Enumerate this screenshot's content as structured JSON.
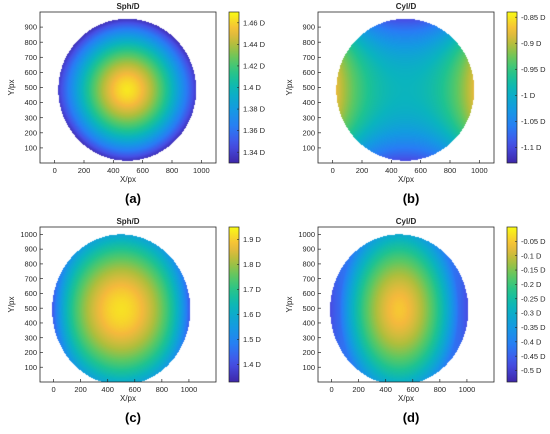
{
  "figure": {
    "panels": [
      "(a)",
      "(b)",
      "(c)",
      "(d)"
    ]
  },
  "chart_data": [
    {
      "type": "heatmap",
      "panel": "(a)",
      "title": "Sph/D",
      "xlabel": "X/px",
      "ylabel": "Y/px",
      "xlim": [
        -100,
        1100
      ],
      "ylim": [
        0,
        1000
      ],
      "xticks": [
        0,
        200,
        400,
        600,
        800,
        1000
      ],
      "yticks": [
        100,
        200,
        300,
        400,
        500,
        600,
        700,
        800,
        900
      ],
      "xtick_labels": [
        "0",
        "200",
        "400",
        "600",
        "800",
        "1000"
      ],
      "ytick_labels": [
        "100",
        "200",
        "300",
        "400",
        "500",
        "600",
        "700",
        "800",
        "900"
      ],
      "colorbar": {
        "min": 1.33,
        "max": 1.47,
        "ticks": [
          1.34,
          1.36,
          1.38,
          1.4,
          1.42,
          1.44,
          1.46
        ],
        "tick_labels": [
          "1.34 D",
          "1.36 D",
          "1.38 D",
          "1.4 D",
          "1.42 D",
          "1.44 D",
          "1.46 D"
        ]
      },
      "map": {
        "shape": "disk",
        "cx": 495,
        "cy": 485,
        "r": 470,
        "pattern": "radial",
        "center_value": 1.465,
        "edge_value": 1.335,
        "ecc": 0.98,
        "power": 1.6,
        "edge_x_boost": 0.06
      }
    },
    {
      "type": "heatmap",
      "panel": "(b)",
      "title": "Cyl/D",
      "xlabel": "X/px",
      "ylabel": "Y/px",
      "xlim": [
        -100,
        1100
      ],
      "ylim": [
        0,
        1000
      ],
      "xticks": [
        0,
        200,
        400,
        600,
        800,
        1000
      ],
      "yticks": [
        100,
        200,
        300,
        400,
        500,
        600,
        700,
        800,
        900
      ],
      "xtick_labels": [
        "0",
        "200",
        "400",
        "600",
        "800",
        "1000"
      ],
      "ytick_labels": [
        "100",
        "200",
        "300",
        "400",
        "500",
        "600",
        "700",
        "800",
        "900"
      ],
      "colorbar": {
        "min": -1.13,
        "max": -0.84,
        "ticks": [
          -1.1,
          -1.05,
          -1,
          -0.95,
          -0.9,
          -0.85
        ],
        "tick_labels": [
          "-1.1 D",
          "-1.05 D",
          "-1 D",
          "-0.95 D",
          "-0.9 D",
          "-0.85 D"
        ]
      },
      "map": {
        "shape": "disk",
        "cx": 495,
        "cy": 485,
        "r": 470,
        "pattern": "saddle",
        "center_value": -0.99,
        "amp_x": 0.11,
        "amp_y": 0.11,
        "power": 2.2
      }
    },
    {
      "type": "heatmap",
      "panel": "(c)",
      "title": "Sph/D",
      "xlabel": "X/px",
      "ylabel": "Y/px",
      "xlim": [
        -100,
        1200
      ],
      "ylim": [
        0,
        1050
      ],
      "xticks": [
        0,
        200,
        400,
        600,
        800,
        1000
      ],
      "yticks": [
        100,
        200,
        300,
        400,
        500,
        600,
        700,
        800,
        900,
        1000
      ],
      "xtick_labels": [
        "0",
        "200",
        "400",
        "600",
        "800",
        "1000"
      ],
      "ytick_labels": [
        "100",
        "200",
        "300",
        "400",
        "500",
        "600",
        "700",
        "800",
        "900",
        "1000"
      ],
      "colorbar": {
        "min": 1.33,
        "max": 1.95,
        "ticks": [
          1.4,
          1.5,
          1.6,
          1.7,
          1.8,
          1.9
        ],
        "tick_labels": [
          "1.4 D",
          "1.5 D",
          "1.6 D",
          "1.7 D",
          "1.8 D",
          "1.9 D"
        ]
      },
      "map": {
        "shape": "disk",
        "cx": 500,
        "cy": 490,
        "r": 510,
        "pattern": "radial",
        "center_value": 1.92,
        "edge_value": 1.58,
        "ecc": 0.93,
        "power": 1.8,
        "edge_x_boost": -0.2
      }
    },
    {
      "type": "heatmap",
      "panel": "(d)",
      "title": "Cyl/D",
      "xlabel": "X/px",
      "ylabel": "Y/px",
      "xlim": [
        -100,
        1200
      ],
      "ylim": [
        0,
        1050
      ],
      "xticks": [
        0,
        200,
        400,
        600,
        800,
        1000
      ],
      "yticks": [
        100,
        200,
        300,
        400,
        500,
        600,
        700,
        800,
        900,
        1000
      ],
      "xtick_labels": [
        "0",
        "200",
        "400",
        "600",
        "800",
        "1000"
      ],
      "ytick_labels": [
        "100",
        "200",
        "300",
        "400",
        "500",
        "600",
        "700",
        "800",
        "900",
        "1000"
      ],
      "colorbar": {
        "min": -0.54,
        "max": 0.0,
        "ticks": [
          -0.5,
          -0.45,
          -0.4,
          -0.35,
          -0.3,
          -0.25,
          -0.2,
          -0.15,
          -0.1,
          -0.05
        ],
        "tick_labels": [
          "-0.5 D",
          "-0.45 D",
          "-0.4 D",
          "-0.35 D",
          "-0.3 D",
          "-0.25 D",
          "-0.2 D",
          "-0.15 D",
          "-0.1 D",
          "-0.05 D"
        ]
      },
      "map": {
        "shape": "disk",
        "cx": 500,
        "cy": 490,
        "r": 510,
        "pattern": "radial",
        "center_value": -0.05,
        "edge_value": -0.31,
        "ecc": 0.72,
        "power": 1.7,
        "edge_x_boost": -0.15
      }
    }
  ]
}
